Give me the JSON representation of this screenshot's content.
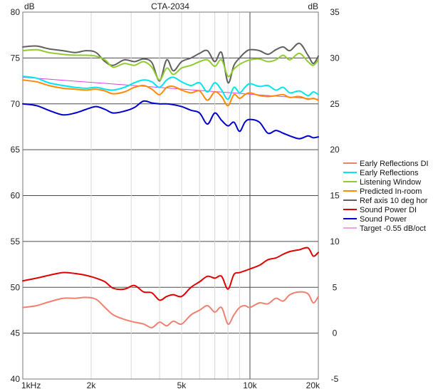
{
  "chart_data": {
    "type": "line",
    "title": "CTA-2034",
    "left_unit": "dB",
    "right_unit": "dB",
    "x_scale": "log",
    "xlim": [
      1000,
      20000
    ],
    "ylim_left": [
      40,
      80
    ],
    "ylim_right": [
      -5,
      35
    ],
    "x_ticks": [
      {
        "value": 1000,
        "label": "1kHz"
      },
      {
        "value": 2000,
        "label": "2k"
      },
      {
        "value": 5000,
        "label": "5k"
      },
      {
        "value": 10000,
        "label": "10k"
      },
      {
        "value": 20000,
        "label": "20k"
      }
    ],
    "y_ticks_left": [
      40,
      45,
      50,
      55,
      60,
      65,
      70,
      75,
      80
    ],
    "y_ticks_right": [
      -5,
      0,
      5,
      10,
      15,
      20,
      25,
      30,
      35
    ],
    "grid": true,
    "legend_position": "right",
    "series": [
      {
        "name": "Early Reflections DI",
        "color": "#f08070",
        "axis": "right",
        "points": [
          [
            1000,
            2.8
          ],
          [
            1150,
            3.0
          ],
          [
            1300,
            3.4
          ],
          [
            1500,
            3.8
          ],
          [
            1700,
            3.8
          ],
          [
            1900,
            3.9
          ],
          [
            2100,
            3.7
          ],
          [
            2300,
            2.8
          ],
          [
            2500,
            2.0
          ],
          [
            2800,
            1.5
          ],
          [
            3100,
            1.2
          ],
          [
            3400,
            1.0
          ],
          [
            3700,
            0.6
          ],
          [
            4000,
            1.2
          ],
          [
            4300,
            0.8
          ],
          [
            4600,
            1.3
          ],
          [
            5000,
            1.0
          ],
          [
            5500,
            2.0
          ],
          [
            6000,
            2.5
          ],
          [
            6500,
            3.0
          ],
          [
            7000,
            2.3
          ],
          [
            7500,
            2.8
          ],
          [
            8000,
            1.0
          ],
          [
            8500,
            2.0
          ],
          [
            9000,
            2.8
          ],
          [
            9500,
            3.0
          ],
          [
            10000,
            2.8
          ],
          [
            11000,
            3.3
          ],
          [
            12000,
            3.2
          ],
          [
            13000,
            3.8
          ],
          [
            14000,
            3.5
          ],
          [
            15000,
            4.2
          ],
          [
            16500,
            4.5
          ],
          [
            18000,
            4.3
          ],
          [
            19000,
            3.3
          ],
          [
            20000,
            4.0
          ]
        ]
      },
      {
        "name": "Early Reflections",
        "color": "#00e5ee",
        "axis": "left",
        "points": [
          [
            1000,
            73.0
          ],
          [
            1150,
            72.8
          ],
          [
            1300,
            72.3
          ],
          [
            1500,
            72.0
          ],
          [
            1700,
            71.8
          ],
          [
            1900,
            71.7
          ],
          [
            2100,
            71.8
          ],
          [
            2300,
            71.6
          ],
          [
            2500,
            71.5
          ],
          [
            2800,
            71.8
          ],
          [
            3100,
            72.3
          ],
          [
            3400,
            72.6
          ],
          [
            3700,
            72.4
          ],
          [
            4000,
            71.8
          ],
          [
            4300,
            72.6
          ],
          [
            4600,
            72.9
          ],
          [
            5000,
            72.4
          ],
          [
            5500,
            72.0
          ],
          [
            6000,
            72.3
          ],
          [
            6500,
            71.3
          ],
          [
            7000,
            72.3
          ],
          [
            7500,
            71.5
          ],
          [
            8000,
            70.5
          ],
          [
            8500,
            71.8
          ],
          [
            9000,
            71.2
          ],
          [
            9500,
            71.8
          ],
          [
            10000,
            72.2
          ],
          [
            11000,
            71.9
          ],
          [
            12000,
            72.0
          ],
          [
            13000,
            71.5
          ],
          [
            14000,
            71.8
          ],
          [
            15000,
            71.2
          ],
          [
            16500,
            71.4
          ],
          [
            18000,
            70.9
          ],
          [
            19000,
            71.3
          ],
          [
            20000,
            71.0
          ]
        ]
      },
      {
        "name": "Listening Window",
        "color": "#90cc30",
        "axis": "left",
        "points": [
          [
            1000,
            75.8
          ],
          [
            1150,
            75.9
          ],
          [
            1300,
            75.6
          ],
          [
            1500,
            75.4
          ],
          [
            1700,
            75.3
          ],
          [
            1900,
            75.3
          ],
          [
            2100,
            75.2
          ],
          [
            2300,
            74.8
          ],
          [
            2500,
            74.0
          ],
          [
            2800,
            74.4
          ],
          [
            3100,
            74.2
          ],
          [
            3400,
            74.6
          ],
          [
            3700,
            74.0
          ],
          [
            4000,
            72.6
          ],
          [
            4300,
            73.9
          ],
          [
            4600,
            73.2
          ],
          [
            5000,
            73.9
          ],
          [
            5500,
            74.2
          ],
          [
            6000,
            74.6
          ],
          [
            6500,
            74.8
          ],
          [
            7000,
            74.1
          ],
          [
            7500,
            74.8
          ],
          [
            8000,
            73.0
          ],
          [
            8500,
            73.8
          ],
          [
            9000,
            74.3
          ],
          [
            9500,
            74.6
          ],
          [
            10000,
            74.8
          ],
          [
            11000,
            74.9
          ],
          [
            12000,
            74.6
          ],
          [
            13000,
            74.8
          ],
          [
            14000,
            75.3
          ],
          [
            15000,
            74.8
          ],
          [
            16500,
            75.5
          ],
          [
            18000,
            74.6
          ],
          [
            19000,
            74.2
          ],
          [
            20000,
            74.8
          ]
        ]
      },
      {
        "name": "Predicted In-room",
        "color": "#ff8c00",
        "axis": "left",
        "points": [
          [
            1000,
            72.6
          ],
          [
            1150,
            72.4
          ],
          [
            1300,
            72.0
          ],
          [
            1500,
            71.7
          ],
          [
            1700,
            71.6
          ],
          [
            1900,
            71.5
          ],
          [
            2100,
            71.6
          ],
          [
            2300,
            71.4
          ],
          [
            2500,
            71.1
          ],
          [
            2800,
            71.3
          ],
          [
            3100,
            71.8
          ],
          [
            3400,
            72.0
          ],
          [
            3700,
            71.6
          ],
          [
            4000,
            71.0
          ],
          [
            4300,
            71.8
          ],
          [
            4600,
            71.9
          ],
          [
            5000,
            71.5
          ],
          [
            5500,
            71.2
          ],
          [
            6000,
            71.4
          ],
          [
            6500,
            70.4
          ],
          [
            7000,
            71.3
          ],
          [
            7500,
            70.8
          ],
          [
            8000,
            69.8
          ],
          [
            8500,
            71.0
          ],
          [
            9000,
            70.6
          ],
          [
            9500,
            71.0
          ],
          [
            10000,
            71.2
          ],
          [
            11000,
            70.9
          ],
          [
            12000,
            70.8
          ],
          [
            13000,
            70.9
          ],
          [
            14000,
            71.0
          ],
          [
            15000,
            70.7
          ],
          [
            16500,
            70.8
          ],
          [
            18000,
            70.5
          ],
          [
            19000,
            70.6
          ],
          [
            20000,
            70.4
          ]
        ]
      },
      {
        "name": "Ref axis 10 deg hor",
        "color": "#606060",
        "axis": "left",
        "points": [
          [
            1000,
            76.2
          ],
          [
            1150,
            76.3
          ],
          [
            1300,
            76.0
          ],
          [
            1500,
            75.8
          ],
          [
            1700,
            75.6
          ],
          [
            1900,
            75.8
          ],
          [
            2100,
            75.6
          ],
          [
            2300,
            74.6
          ],
          [
            2500,
            74.2
          ],
          [
            2800,
            74.8
          ],
          [
            3100,
            74.6
          ],
          [
            3400,
            74.9
          ],
          [
            3700,
            74.5
          ],
          [
            4000,
            72.5
          ],
          [
            4300,
            74.8
          ],
          [
            4600,
            73.6
          ],
          [
            5000,
            74.6
          ],
          [
            5500,
            75.0
          ],
          [
            6000,
            75.5
          ],
          [
            6500,
            75.8
          ],
          [
            7000,
            74.6
          ],
          [
            7500,
            75.6
          ],
          [
            8000,
            72.3
          ],
          [
            8500,
            74.2
          ],
          [
            9000,
            75.0
          ],
          [
            9500,
            75.6
          ],
          [
            10000,
            75.9
          ],
          [
            11000,
            75.8
          ],
          [
            12000,
            75.4
          ],
          [
            13000,
            75.9
          ],
          [
            14000,
            76.2
          ],
          [
            15000,
            75.8
          ],
          [
            16500,
            76.6
          ],
          [
            18000,
            75.3
          ],
          [
            19000,
            74.4
          ],
          [
            20000,
            75.2
          ]
        ]
      },
      {
        "name": "Sound Power DI",
        "color": "#e00000",
        "axis": "right",
        "points": [
          [
            1000,
            5.7
          ],
          [
            1150,
            6.0
          ],
          [
            1300,
            6.3
          ],
          [
            1500,
            6.6
          ],
          [
            1700,
            6.5
          ],
          [
            1900,
            6.3
          ],
          [
            2100,
            6.0
          ],
          [
            2300,
            5.6
          ],
          [
            2500,
            4.9
          ],
          [
            2800,
            4.8
          ],
          [
            3100,
            5.2
          ],
          [
            3400,
            4.5
          ],
          [
            3700,
            4.4
          ],
          [
            4000,
            3.6
          ],
          [
            4300,
            4.0
          ],
          [
            4600,
            4.2
          ],
          [
            5000,
            4.0
          ],
          [
            5500,
            5.0
          ],
          [
            6000,
            5.6
          ],
          [
            6500,
            6.2
          ],
          [
            7000,
            6.0
          ],
          [
            7500,
            6.2
          ],
          [
            8000,
            4.8
          ],
          [
            8500,
            6.4
          ],
          [
            9000,
            6.6
          ],
          [
            9500,
            6.8
          ],
          [
            10000,
            7.0
          ],
          [
            11000,
            7.4
          ],
          [
            12000,
            8.0
          ],
          [
            13000,
            8.2
          ],
          [
            14000,
            8.6
          ],
          [
            15000,
            8.9
          ],
          [
            16500,
            9.1
          ],
          [
            18000,
            9.3
          ],
          [
            19000,
            8.4
          ],
          [
            20000,
            8.8
          ]
        ]
      },
      {
        "name": "Sound Power",
        "color": "#0000cc",
        "axis": "left",
        "points": [
          [
            1000,
            70.0
          ],
          [
            1150,
            69.8
          ],
          [
            1300,
            69.3
          ],
          [
            1500,
            68.8
          ],
          [
            1700,
            69.0
          ],
          [
            1900,
            69.4
          ],
          [
            2100,
            69.7
          ],
          [
            2300,
            69.4
          ],
          [
            2500,
            69.0
          ],
          [
            2800,
            69.2
          ],
          [
            3100,
            69.6
          ],
          [
            3400,
            70.3
          ],
          [
            3700,
            70.1
          ],
          [
            4000,
            70.0
          ],
          [
            4300,
            70.0
          ],
          [
            4600,
            69.9
          ],
          [
            5000,
            69.7
          ],
          [
            5500,
            69.3
          ],
          [
            6000,
            69.0
          ],
          [
            6500,
            67.8
          ],
          [
            7000,
            69.0
          ],
          [
            7500,
            68.2
          ],
          [
            8000,
            67.6
          ],
          [
            8500,
            68.0
          ],
          [
            9000,
            67.0
          ],
          [
            9500,
            68.0
          ],
          [
            10000,
            68.3
          ],
          [
            11000,
            68.0
          ],
          [
            12000,
            66.8
          ],
          [
            13000,
            67.1
          ],
          [
            14000,
            66.8
          ],
          [
            15000,
            66.5
          ],
          [
            16500,
            66.2
          ],
          [
            18000,
            66.5
          ],
          [
            19000,
            66.3
          ],
          [
            20000,
            66.4
          ]
        ]
      },
      {
        "name": "Target -0.55 dB/oct",
        "color": "#e040e0",
        "axis": "left",
        "points": [
          [
            1000,
            72.9
          ],
          [
            20000,
            70.5
          ]
        ]
      }
    ]
  }
}
